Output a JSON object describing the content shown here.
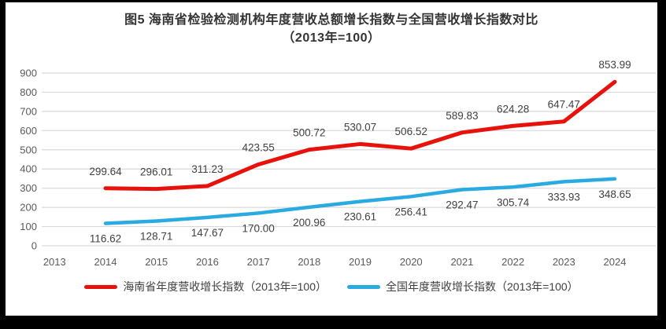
{
  "chart_data": {
    "type": "line",
    "title_line1": "图5  海南省检验检测机构年度营收总额增长指数与全国营收增长指数对比",
    "title_line2": "（2013年=100）",
    "categories": [
      "2013",
      "2014",
      "2015",
      "2016",
      "2017",
      "2018",
      "2019",
      "2020",
      "2021",
      "2022",
      "2023",
      "2024"
    ],
    "series": [
      {
        "name": "海南省年度营收增长指数（2013年=100）",
        "color": "#e8120c",
        "label_position": "above",
        "values": [
          null,
          299.64,
          296.01,
          311.23,
          423.55,
          500.72,
          530.07,
          506.52,
          589.83,
          624.28,
          647.47,
          853.99
        ],
        "value_labels": [
          null,
          "299.64",
          "296.01",
          "311.23",
          "423.55",
          "500.72",
          "530.07",
          "506.52",
          "589.83",
          "624.28",
          "647.47",
          "853.99"
        ]
      },
      {
        "name": "全国年度营收增长指数（2013年=100）",
        "color": "#29abe2",
        "label_position": "below",
        "values": [
          null,
          116.62,
          128.71,
          147.67,
          170.0,
          200.96,
          230.61,
          256.41,
          292.47,
          305.74,
          333.93,
          348.65
        ],
        "value_labels": [
          null,
          "116.62",
          "128.71",
          "147.67",
          "170.00",
          "200.96",
          "230.61",
          "256.41",
          "292.47",
          "305.74",
          "333.93",
          "348.65"
        ]
      }
    ],
    "ylim": [
      0,
      900
    ],
    "ytick_step": 100,
    "grid": true,
    "legend_position": "bottom",
    "colors": {
      "grid_line": "#d9d9d9",
      "axis_text": "#595959",
      "data_label_text": "#404040",
      "title_text": "#333333",
      "card_background": "#ffffff",
      "frame_background": "#000000"
    }
  }
}
